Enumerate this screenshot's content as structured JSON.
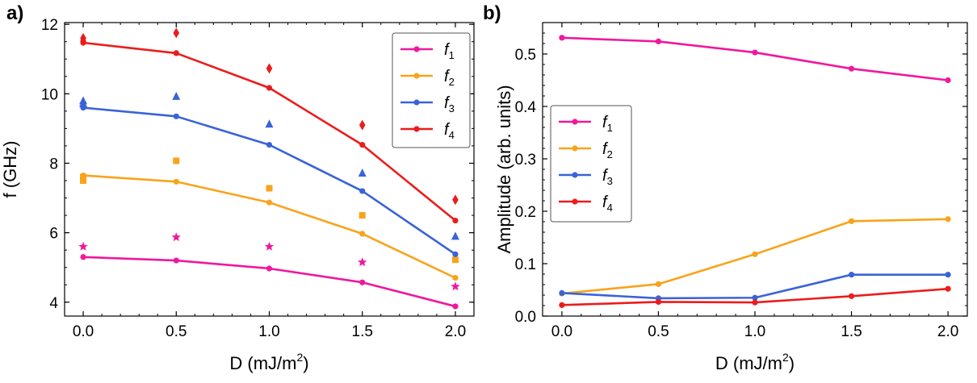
{
  "chart_data": [
    {
      "panel_label": "a)",
      "type": "line",
      "xlabel": "D (mJ/m",
      "xlabel_sup": "2",
      "xlabel_end": ")",
      "ylabel": "f (GHz)",
      "xlim": [
        -0.1,
        2.1
      ],
      "ylim": [
        3.6,
        12.05
      ],
      "xticks": [
        0.0,
        0.5,
        1.0,
        1.5,
        2.0
      ],
      "xtick_labels": [
        "0.0",
        "0.5",
        "1.0",
        "1.5",
        "2.0"
      ],
      "yticks": [
        4,
        6,
        8,
        10,
        12
      ],
      "ytick_labels": [
        "4",
        "6",
        "8",
        "10",
        "12"
      ],
      "legend_position": "top-right",
      "x": [
        0.0,
        0.5,
        1.0,
        1.5,
        2.0
      ],
      "series": [
        {
          "name": "f",
          "sub": "1",
          "color": "#f0189c",
          "values": [
            5.3,
            5.2,
            4.97,
            4.57,
            3.88
          ],
          "sim_marker": "star",
          "sim_values": [
            5.6,
            5.87,
            5.6,
            5.15,
            4.45
          ]
        },
        {
          "name": "f",
          "sub": "2",
          "color": "#f9a31b",
          "values": [
            7.65,
            7.47,
            6.87,
            5.97,
            4.7
          ],
          "sim_marker": "square",
          "sim_values": [
            [
              7.5,
              7.6
            ],
            8.07,
            7.28,
            6.5,
            5.22
          ]
        },
        {
          "name": "f",
          "sub": "3",
          "color": "#3a63d8",
          "values": [
            9.6,
            9.35,
            8.53,
            7.2,
            5.38
          ],
          "sim_marker": "triangle",
          "sim_values": [
            [
              9.72,
              9.8
            ],
            9.93,
            9.13,
            7.72,
            5.9
          ]
        },
        {
          "name": "f",
          "sub": "4",
          "color": "#ec1c1c",
          "values": [
            11.47,
            11.17,
            10.17,
            8.53,
            6.35
          ],
          "sim_marker": "diamond",
          "sim_values": [
            [
              11.52,
              11.6
            ],
            11.75,
            10.73,
            9.1,
            6.95
          ]
        }
      ]
    },
    {
      "panel_label": "b)",
      "type": "line",
      "xlabel": "D (mJ/m",
      "xlabel_sup": "2",
      "xlabel_end": ")",
      "ylabel": "Amplitude (arb. units)",
      "xlim": [
        -0.1,
        2.1
      ],
      "ylim": [
        0.0,
        0.56
      ],
      "xticks": [
        0.0,
        0.5,
        1.0,
        1.5,
        2.0
      ],
      "xtick_labels": [
        "0.0",
        "0.5",
        "1.0",
        "1.5",
        "2.0"
      ],
      "yticks": [
        0.0,
        0.1,
        0.2,
        0.3,
        0.4,
        0.5
      ],
      "ytick_labels": [
        "0.0",
        "0.1",
        "0.2",
        "0.3",
        "0.4",
        "0.5"
      ],
      "legend_position": "center-left",
      "x": [
        0.0,
        0.5,
        1.0,
        1.5,
        2.0
      ],
      "series": [
        {
          "name": "f",
          "sub": "1",
          "color": "#f0189c",
          "values": [
            0.531,
            0.524,
            0.503,
            0.472,
            0.45
          ]
        },
        {
          "name": "f",
          "sub": "2",
          "color": "#f9a31b",
          "values": [
            0.043,
            0.061,
            0.118,
            0.181,
            0.185
          ]
        },
        {
          "name": "f",
          "sub": "3",
          "color": "#3a63d8",
          "values": [
            0.044,
            0.034,
            0.035,
            0.079,
            0.079
          ]
        },
        {
          "name": "f",
          "sub": "4",
          "color": "#ec1c1c",
          "values": [
            0.021,
            0.027,
            0.026,
            0.038,
            0.052
          ]
        }
      ]
    }
  ]
}
